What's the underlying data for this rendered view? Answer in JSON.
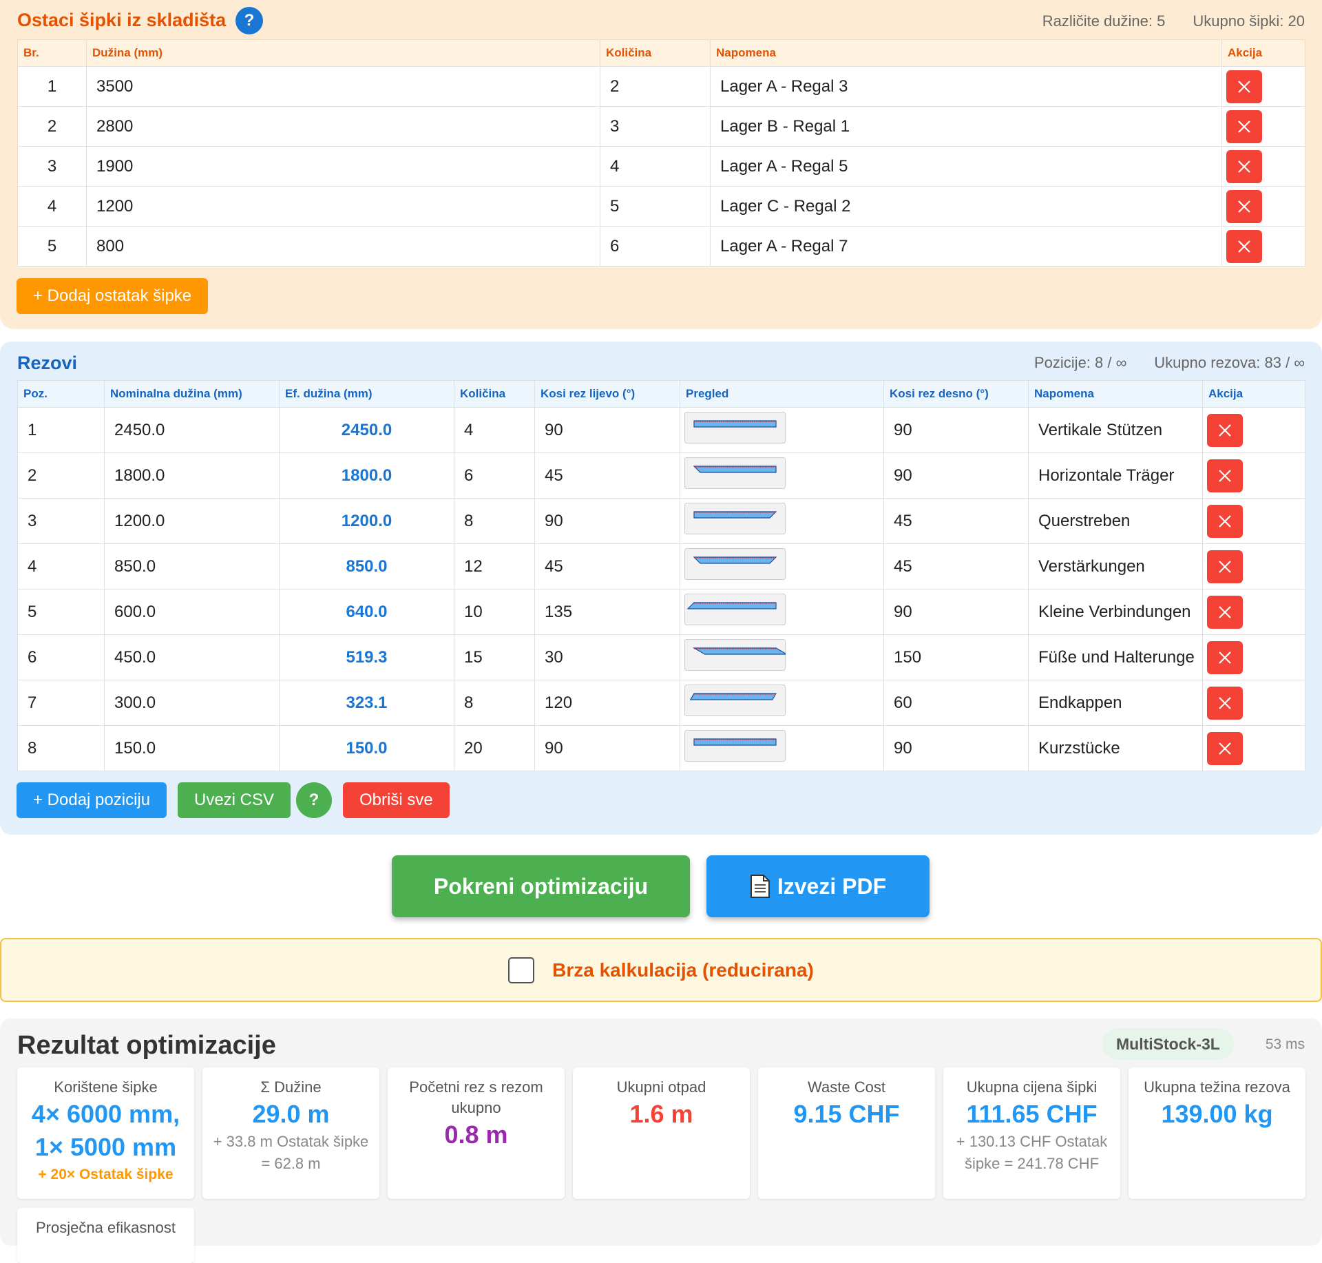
{
  "stock": {
    "title": "Ostaci šipki iz skladišta",
    "help": "?",
    "stats": [
      "Različite dužine: 5",
      "Ukupno šipki: 20"
    ],
    "columns": [
      "Br.",
      "Dužina (mm)",
      "Količina",
      "Napomena",
      "Akcija"
    ],
    "rows": [
      [
        "1",
        "3500",
        "2",
        "Lager A - Regal 3"
      ],
      [
        "2",
        "2800",
        "3",
        "Lager B - Regal 1"
      ],
      [
        "3",
        "1900",
        "4",
        "Lager A - Regal 5"
      ],
      [
        "4",
        "1200",
        "5",
        "Lager C - Regal 2"
      ],
      [
        "5",
        "800",
        "6",
        "Lager A - Regal 7"
      ]
    ],
    "add_button": "+ Dodaj ostatak šipke"
  },
  "cuts": {
    "title": "Rezovi",
    "stats": [
      "Pozicije: 8 / ∞",
      "Ukupno rezova: 83 / ∞"
    ],
    "columns": [
      "Poz.",
      "Nominalna dužina (mm)",
      "Ef. dužina (mm)",
      "Količina",
      "Kosi rez lijevo (°)",
      "Pregled",
      "Kosi rez desno (°)",
      "Napomena",
      "Akcija"
    ],
    "rows": [
      {
        "poz": "1",
        "nominal": "2450.0",
        "effective": "2450.0",
        "qty": "4",
        "left": "90",
        "right": "90",
        "note": "Vertikale Stützen"
      },
      {
        "poz": "2",
        "nominal": "1800.0",
        "effective": "1800.0",
        "qty": "6",
        "left": "45",
        "right": "90",
        "note": "Horizontale Träger"
      },
      {
        "poz": "3",
        "nominal": "1200.0",
        "effective": "1200.0",
        "qty": "8",
        "left": "90",
        "right": "45",
        "note": "Querstreben"
      },
      {
        "poz": "4",
        "nominal": "850.0",
        "effective": "850.0",
        "qty": "12",
        "left": "45",
        "right": "45",
        "note": "Verstärkungen"
      },
      {
        "poz": "5",
        "nominal": "600.0",
        "effective": "640.0",
        "qty": "10",
        "left": "135",
        "right": "90",
        "note": "Kleine Verbindungen"
      },
      {
        "poz": "6",
        "nominal": "450.0",
        "effective": "519.3",
        "qty": "15",
        "left": "30",
        "right": "150",
        "note": "Füße und Halterunge"
      },
      {
        "poz": "7",
        "nominal": "300.0",
        "effective": "323.1",
        "qty": "8",
        "left": "120",
        "right": "60",
        "note": "Endkappen"
      },
      {
        "poz": "8",
        "nominal": "150.0",
        "effective": "150.0",
        "qty": "20",
        "left": "90",
        "right": "90",
        "note": "Kurzstücke"
      }
    ],
    "buttons": {
      "add": "+ Dodaj poziciju",
      "csv": "Uvezi CSV",
      "help": "?",
      "clear": "Obriši sve"
    }
  },
  "actions": {
    "optimize": "Pokreni optimizaciju",
    "pdf": "Izvezi PDF"
  },
  "quick": {
    "label": "Brza kalkulacija (reducirana)"
  },
  "result": {
    "title": "Rezultat optimizacije",
    "algorithm": "MultiStock-3L",
    "time": "53 ms",
    "cards": [
      {
        "label": "Korištene šipke",
        "value": "4× 6000 mm, 1× 5000 mm",
        "note": "+ 20× Ostatak šipke",
        "color": "#2196f3"
      },
      {
        "label": "Σ Dužine",
        "value": "29.0 m",
        "note": "+ 33.8 m Ostatak šipke = 62.8 m",
        "color": "#2196f3"
      },
      {
        "label": "Početni rez s rezom ukupno",
        "value": "0.8 m",
        "color": "#9c27b0"
      },
      {
        "label": "Ukupni otpad",
        "value": "1.6 m",
        "color": "#f44336"
      },
      {
        "label": "Waste Cost",
        "value": "9.15 CHF",
        "color": "#2196f3"
      },
      {
        "label": "Ukupna cijena šipki",
        "value": "111.65 CHF",
        "note": "+ 130.13 CHF Ostatak šipke = 241.78 CHF",
        "color": "#2196f3"
      },
      {
        "label": "Ukupna težina rezova",
        "value": "139.00 kg",
        "color": "#2196f3"
      },
      {
        "label": "Prosječna efikasnost"
      }
    ]
  }
}
